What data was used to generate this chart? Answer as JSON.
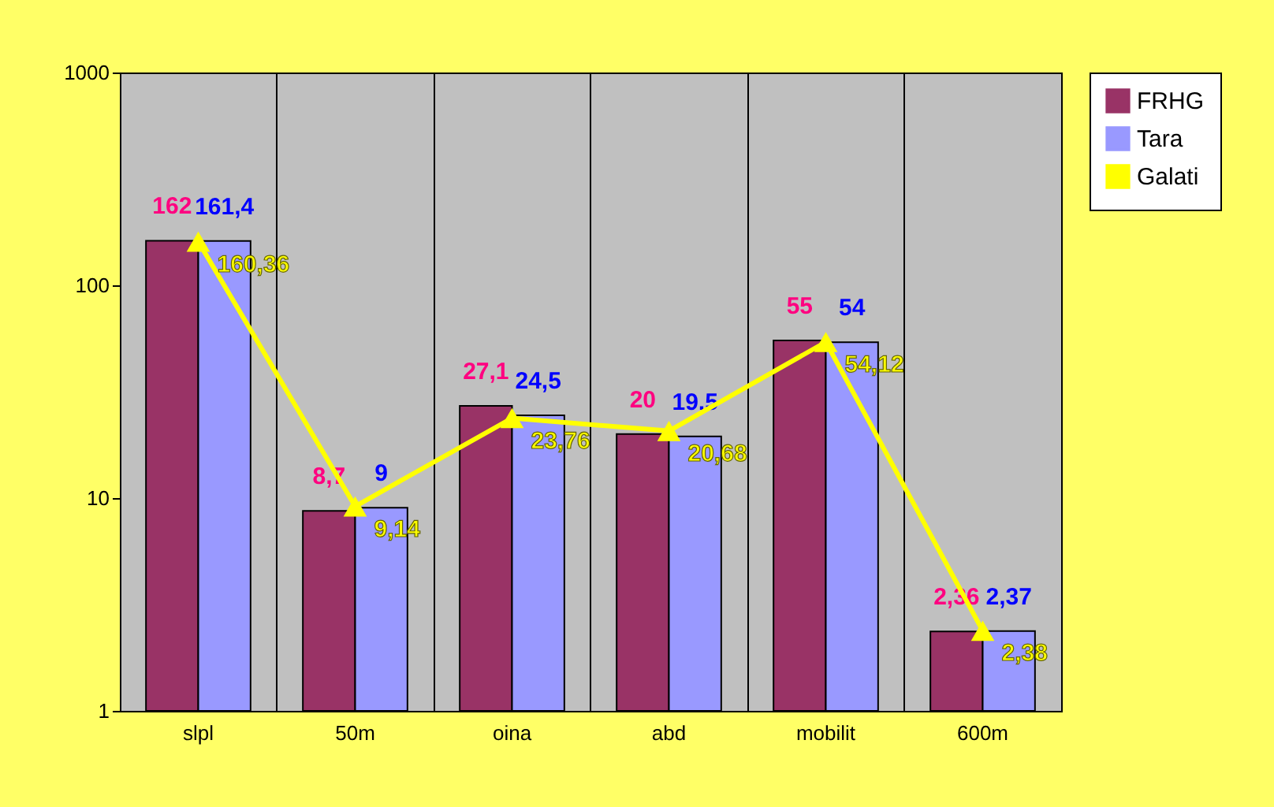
{
  "chart_data": {
    "type": "bar",
    "categories": [
      "slpl",
      "50m",
      "oina",
      "abd",
      "mobilit",
      "600m"
    ],
    "series": [
      {
        "name": "FRHG",
        "color": "#993366",
        "values": [
          162,
          8.7,
          27.1,
          20,
          55,
          2.36
        ],
        "value_labels": [
          "162",
          "8,7",
          "27,1",
          "20",
          "55",
          "2,36"
        ]
      },
      {
        "name": "Tara",
        "color": "#9999ff",
        "values": [
          161.4,
          9,
          24.5,
          19.5,
          54,
          2.37
        ],
        "value_labels": [
          "161,4",
          "9",
          "24,5",
          "19,5",
          "54",
          "2,37"
        ]
      },
      {
        "name": "Galati",
        "type": "line",
        "color": "#ffff00",
        "marker": "triangle",
        "values": [
          160.36,
          9.14,
          23.76,
          20.68,
          54.12,
          2.38
        ],
        "value_labels": [
          "160,36",
          "9,14",
          "23,76",
          "20,68",
          "54,12",
          "2,38"
        ]
      }
    ],
    "log": true,
    "ylim": [
      1,
      1000
    ],
    "yticks": [
      1,
      10,
      100,
      1000
    ],
    "grid": "x",
    "legend": "right"
  }
}
